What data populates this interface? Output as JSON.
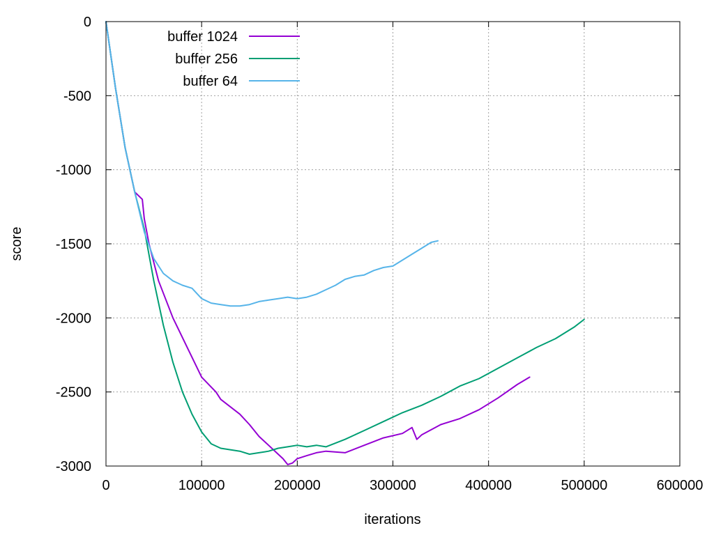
{
  "chart_data": {
    "type": "line",
    "xlabel": "iterations",
    "ylabel": "score",
    "xlim": [
      0,
      600000
    ],
    "ylim": [
      -3000,
      0
    ],
    "xticks": [
      0,
      100000,
      200000,
      300000,
      400000,
      500000,
      600000
    ],
    "yticks": [
      0,
      -500,
      -1000,
      -1500,
      -2000,
      -2500,
      -3000
    ],
    "grid": true,
    "legend_position": "top-left",
    "series": [
      {
        "name": "buffer 1024",
        "color": "#9400d3",
        "x": [
          0,
          10000,
          20000,
          30000,
          38000,
          40000,
          45000,
          55000,
          70000,
          85000,
          100000,
          115000,
          120000,
          130000,
          140000,
          150000,
          160000,
          170000,
          180000,
          185000,
          190000,
          195000,
          200000,
          210000,
          220000,
          230000,
          250000,
          270000,
          290000,
          310000,
          320000,
          325000,
          330000,
          350000,
          370000,
          390000,
          410000,
          430000,
          443000
        ],
        "y": [
          0,
          -450,
          -850,
          -1150,
          -1200,
          -1330,
          -1500,
          -1750,
          -2000,
          -2200,
          -2400,
          -2500,
          -2550,
          -2600,
          -2650,
          -2720,
          -2800,
          -2860,
          -2920,
          -2950,
          -2990,
          -2980,
          -2950,
          -2930,
          -2910,
          -2900,
          -2910,
          -2860,
          -2810,
          -2780,
          -2740,
          -2820,
          -2790,
          -2720,
          -2680,
          -2620,
          -2540,
          -2450,
          -2400
        ]
      },
      {
        "name": "buffer 256",
        "color": "#009e73",
        "x": [
          0,
          10000,
          20000,
          30000,
          40000,
          50000,
          60000,
          70000,
          80000,
          90000,
          100000,
          110000,
          120000,
          130000,
          140000,
          150000,
          160000,
          170000,
          180000,
          190000,
          200000,
          210000,
          220000,
          230000,
          250000,
          270000,
          290000,
          310000,
          330000,
          350000,
          370000,
          390000,
          410000,
          430000,
          450000,
          470000,
          490000,
          500000
        ],
        "y": [
          0,
          -450,
          -850,
          -1150,
          -1400,
          -1750,
          -2050,
          -2300,
          -2500,
          -2650,
          -2770,
          -2850,
          -2880,
          -2890,
          -2900,
          -2920,
          -2910,
          -2900,
          -2880,
          -2870,
          -2860,
          -2870,
          -2860,
          -2870,
          -2820,
          -2760,
          -2700,
          -2640,
          -2590,
          -2530,
          -2460,
          -2410,
          -2340,
          -2270,
          -2200,
          -2140,
          -2060,
          -2010
        ]
      },
      {
        "name": "buffer 64",
        "color": "#56b4e9",
        "x": [
          0,
          10000,
          20000,
          30000,
          40000,
          50000,
          60000,
          70000,
          80000,
          90000,
          100000,
          110000,
          120000,
          130000,
          140000,
          150000,
          160000,
          170000,
          180000,
          190000,
          200000,
          210000,
          220000,
          230000,
          240000,
          250000,
          260000,
          270000,
          280000,
          290000,
          300000,
          310000,
          320000,
          330000,
          340000,
          347000
        ],
        "y": [
          0,
          -450,
          -850,
          -1150,
          -1420,
          -1600,
          -1700,
          -1750,
          -1780,
          -1800,
          -1870,
          -1900,
          -1910,
          -1920,
          -1920,
          -1910,
          -1890,
          -1880,
          -1870,
          -1860,
          -1870,
          -1860,
          -1840,
          -1810,
          -1780,
          -1740,
          -1720,
          -1710,
          -1680,
          -1660,
          -1650,
          -1610,
          -1570,
          -1530,
          -1490,
          -1480
        ]
      }
    ]
  }
}
